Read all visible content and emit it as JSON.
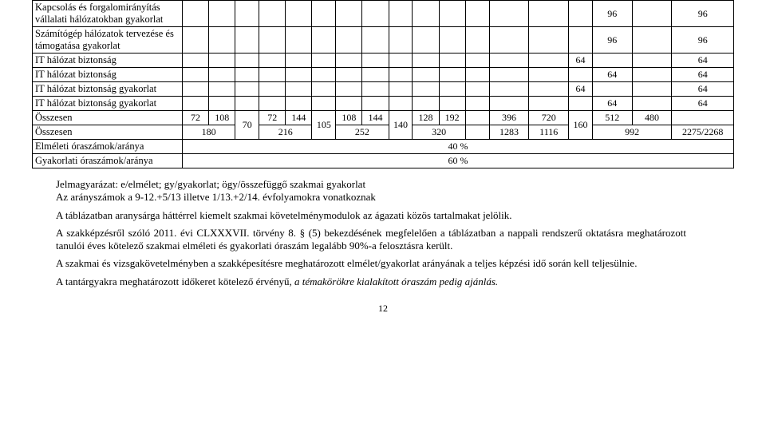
{
  "table": {
    "rows": [
      {
        "kind": "item",
        "label": "Kapcsolás és forgalomirányítás vállalati hálózatokban gyakorlat",
        "vals": [
          "",
          "",
          "",
          "",
          "",
          "",
          "",
          "",
          "",
          "",
          "",
          "",
          "",
          "",
          "",
          "96",
          "",
          "96"
        ]
      },
      {
        "kind": "item",
        "label": "Számítógép hálózatok tervezése és támogatása gyakorlat",
        "vals": [
          "",
          "",
          "",
          "",
          "",
          "",
          "",
          "",
          "",
          "",
          "",
          "",
          "",
          "",
          "",
          "96",
          "",
          "96"
        ]
      },
      {
        "kind": "item",
        "label": "IT hálózat biztonság",
        "vals": [
          "",
          "",
          "",
          "",
          "",
          "",
          "",
          "",
          "",
          "",
          "",
          "",
          "",
          "",
          "64",
          "",
          "",
          "64"
        ]
      },
      {
        "kind": "item",
        "label": "IT hálózat biztonság",
        "vals": [
          "",
          "",
          "",
          "",
          "",
          "",
          "",
          "",
          "",
          "",
          "",
          "",
          "",
          "",
          "",
          "64",
          "",
          "64"
        ]
      },
      {
        "kind": "item",
        "label": "IT hálózat biztonság gyakorlat",
        "vals": [
          "",
          "",
          "",
          "",
          "",
          "",
          "",
          "",
          "",
          "",
          "",
          "",
          "",
          "",
          "64",
          "",
          "",
          "64"
        ]
      },
      {
        "kind": "item",
        "label": "IT hálózat biztonság gyakorlat",
        "vals": [
          "",
          "",
          "",
          "",
          "",
          "",
          "",
          "",
          "",
          "",
          "",
          "",
          "",
          "",
          "",
          "64",
          "",
          "64"
        ]
      }
    ],
    "sumTopLabel": "Összesen",
    "sumTop": [
      "72",
      "108",
      "",
      "72",
      "144",
      "",
      "108",
      "144",
      "",
      "128",
      "192",
      "",
      "396",
      "720",
      "",
      "512",
      "480",
      ""
    ],
    "mergeA": "70",
    "mergeB": "105",
    "mergeC": "140",
    "mergeD": "160",
    "sumBotLabel": "Összesen",
    "sumBot": [
      "180",
      "",
      "",
      "216",
      "",
      "",
      "252",
      "",
      "",
      "320",
      "",
      "",
      "1283",
      "1116",
      "",
      "992",
      "",
      "2275/2268"
    ],
    "pct1Label": "Elméleti óraszámok/aránya",
    "pct1": "40 %",
    "pct2Label": "Gyakorlati óraszámok/aránya",
    "pct2": "60 %"
  },
  "legend": {
    "l1": "Jelmagyarázat: e/elmélet; gy/gyakorlat; ögy/összefüggő szakmai gyakorlat",
    "l2": "Az arányszámok a 9-12.+5/13 illetve 1/13.+2/14. évfolyamokra vonatkoznak"
  },
  "p1": "A táblázatban aranysárga háttérrel kiemelt szakmai követelménymodulok az ágazati közös tartalmakat jelölik.",
  "p2a": "A szakképzésről szóló 2011. évi CLXXXVII. törvény 8.",
  "p2b": "§ (5) bekezdésének megfelelően a táblázatban a nappali rendszerű oktatásra meghatározott tanulói éves kötelező szakmai elméleti és gyakorlati óraszám legalább 90%-a felosztásra került.",
  "p3": "A szakmai és vizsgakövetelményben a szakképesítésre meghatározott elmélet/gyakorlat arányának a teljes képzési idő során kell teljesülnie.",
  "p4a": "A tantárgyakra meghatározott időkeret kötelező érvényű, ",
  "p4b": "a témakörökre kialakított óraszám pedig ajánlás.",
  "page": "12"
}
